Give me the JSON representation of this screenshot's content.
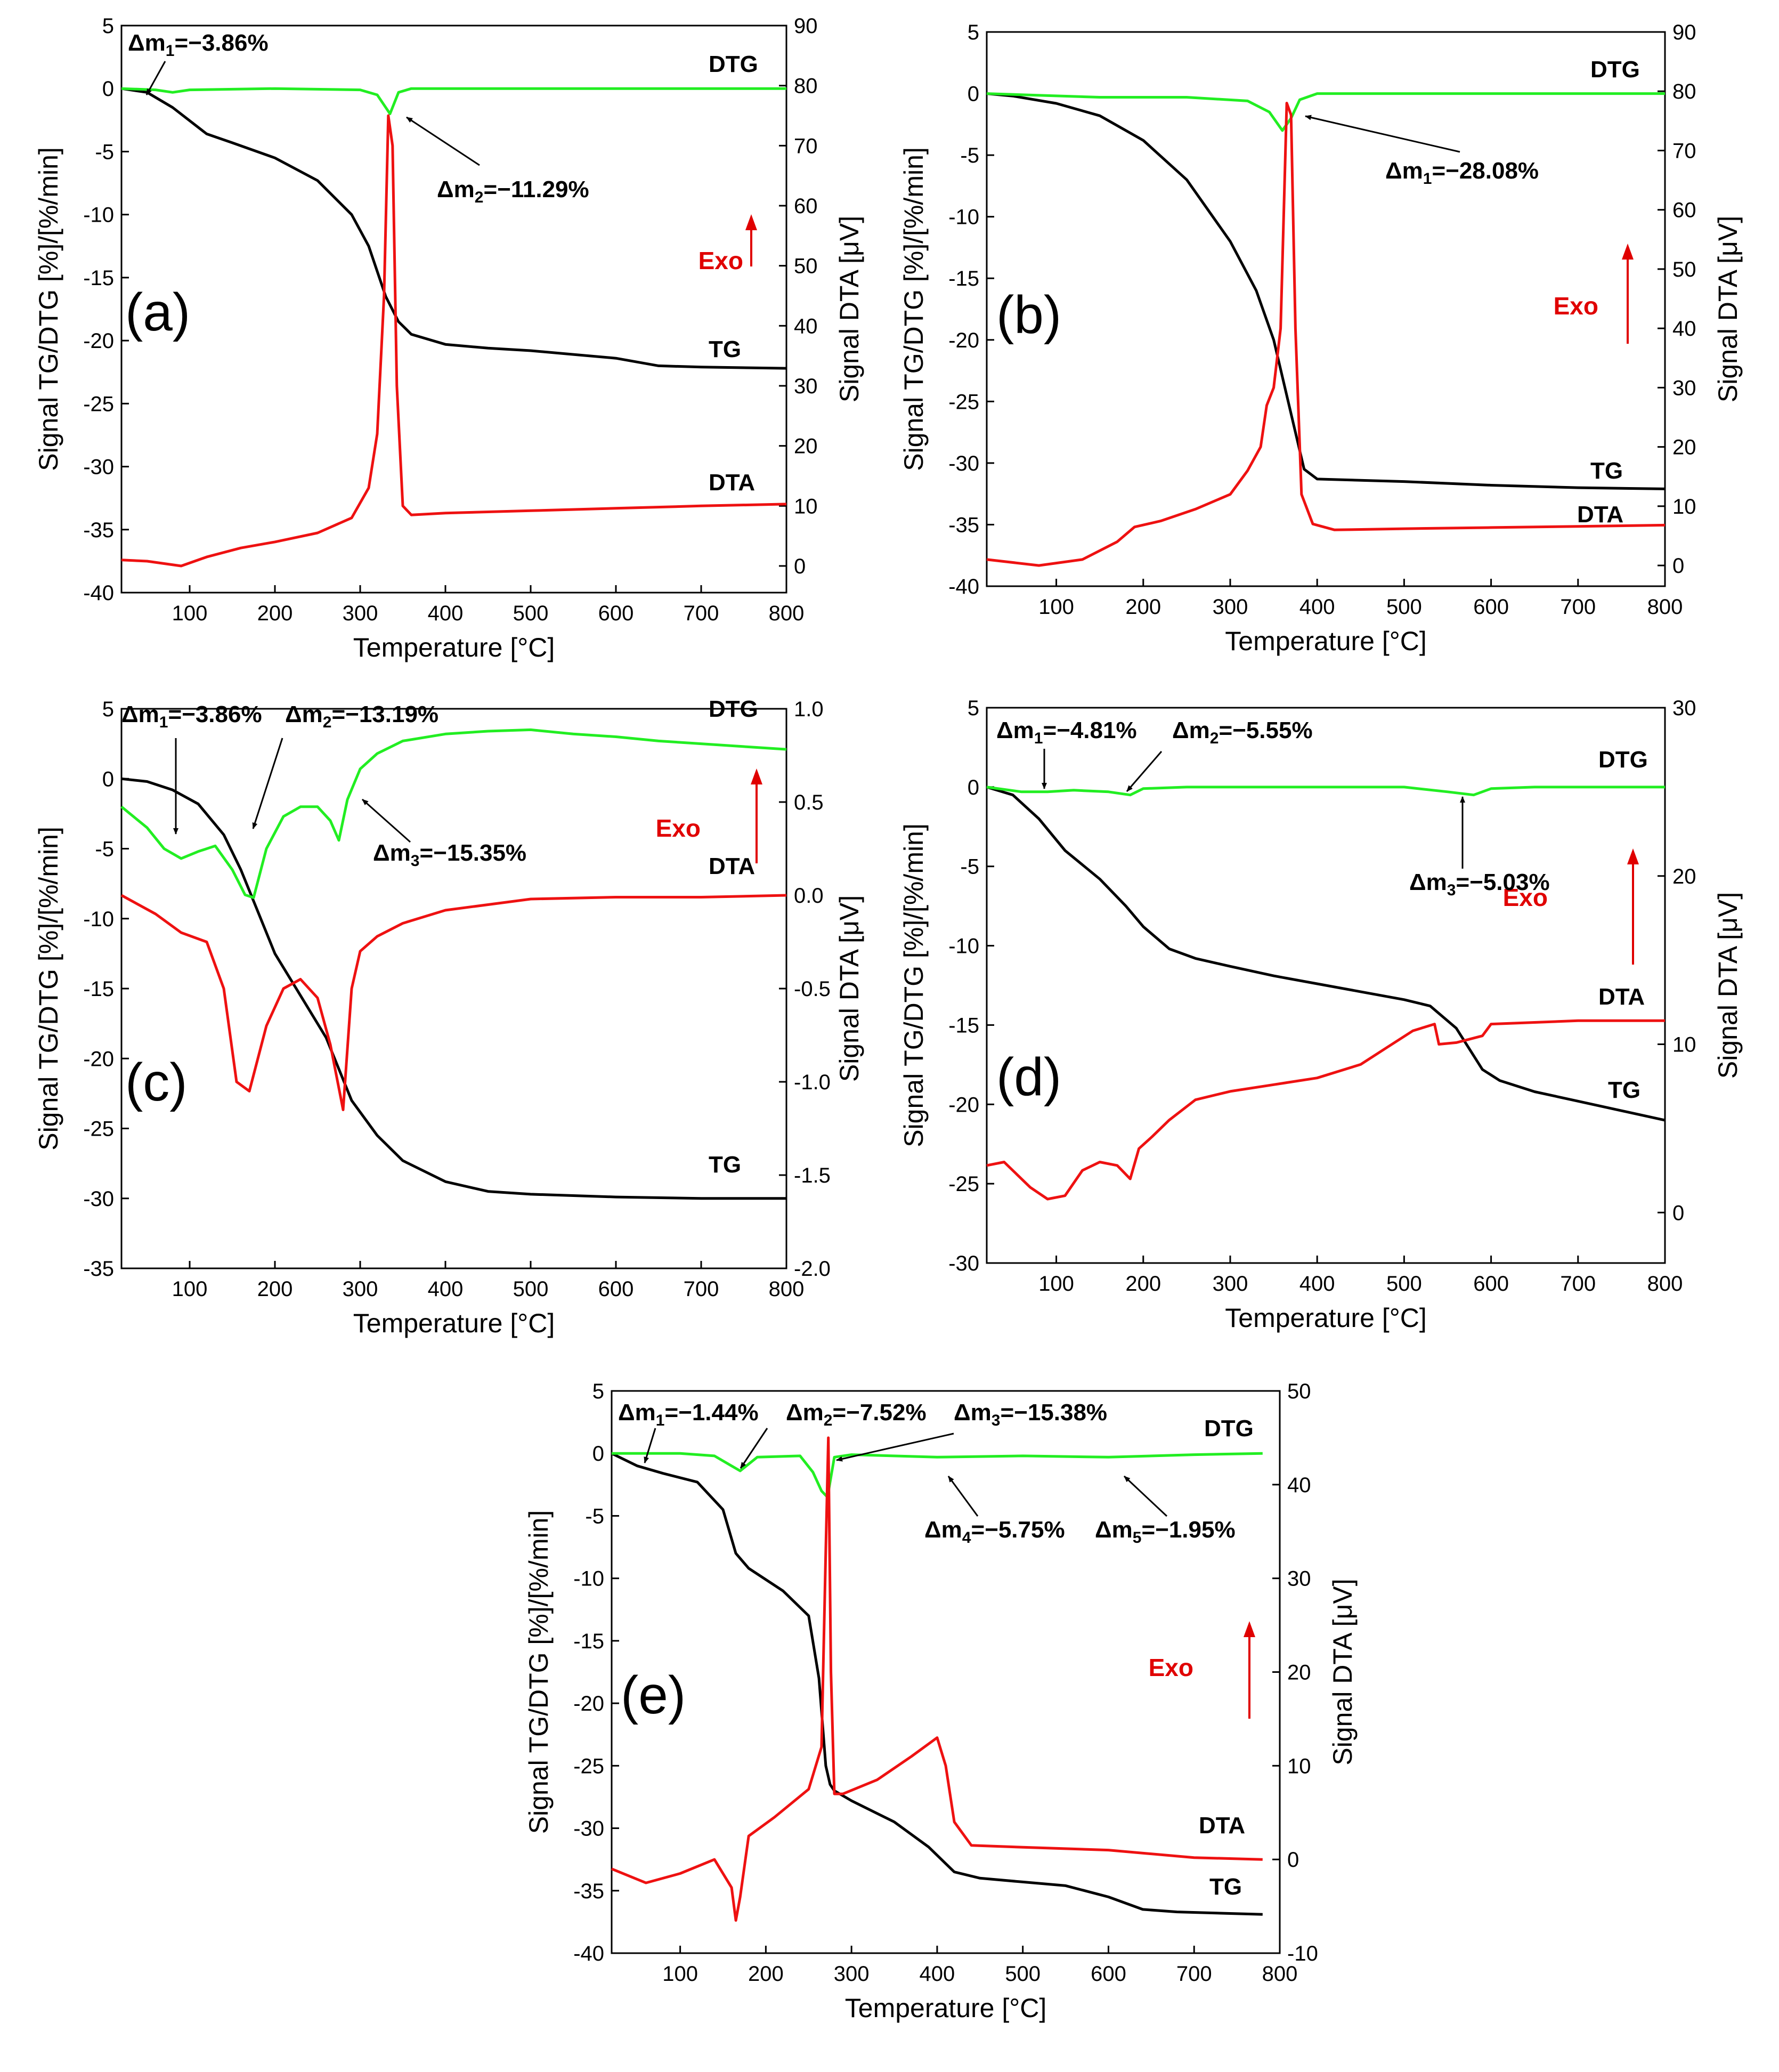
{
  "colors": {
    "tg": "#000000",
    "dtg": "#22ee22",
    "dta": "#ee1111",
    "exo": "#e00000",
    "axis": "#000000"
  },
  "chart_data": [
    {
      "type": "line",
      "panel_label": "(a)",
      "xlabel": "Temperature [°C]",
      "ylabel_left": "Signal TG/DTG [%]/[%/min]",
      "ylabel_right": "Signal DTA [μV]",
      "xlim": [
        20,
        800
      ],
      "ylim_left": [
        -40,
        5
      ],
      "ylim_right": [
        -4.44,
        90
      ],
      "xticks": [
        100,
        200,
        300,
        400,
        500,
        600,
        700,
        800
      ],
      "yticks_left": [
        5,
        0,
        -5,
        -10,
        -15,
        -20,
        -25,
        -30,
        -35,
        -40
      ],
      "yticks_right": [
        90,
        80,
        70,
        60,
        50,
        40,
        30,
        20,
        10,
        0
      ],
      "exo_label": "Exo",
      "series": [
        {
          "name": "TG",
          "label": "TG",
          "axis": "left",
          "x": [
            20,
            50,
            80,
            120,
            150,
            200,
            250,
            290,
            310,
            330,
            345,
            360,
            400,
            450,
            500,
            550,
            600,
            650,
            700,
            800
          ],
          "y": [
            0,
            -0.3,
            -1.5,
            -3.6,
            -4.3,
            -5.5,
            -7.3,
            -10,
            -12.5,
            -16.5,
            -18.5,
            -19.5,
            -20.3,
            -20.6,
            -20.8,
            -21.1,
            -21.4,
            -22.0,
            -22.1,
            -22.2
          ]
        },
        {
          "name": "DTG",
          "label": "DTG",
          "axis": "left",
          "x": [
            20,
            60,
            80,
            100,
            200,
            300,
            320,
            335,
            345,
            360,
            400,
            500,
            600,
            700,
            800
          ],
          "y": [
            0,
            -0.1,
            -0.3,
            -0.1,
            0,
            -0.1,
            -0.5,
            -2.0,
            -0.3,
            0,
            0,
            0,
            0,
            0,
            0
          ]
        },
        {
          "name": "DTA",
          "label": "DTA",
          "axis": "right",
          "x": [
            20,
            50,
            90,
            120,
            160,
            200,
            250,
            290,
            310,
            320,
            328,
            333,
            338,
            343,
            350,
            360,
            400,
            500,
            600,
            700,
            800
          ],
          "y": [
            1,
            0.8,
            0,
            1.5,
            3,
            4,
            5.5,
            8,
            13,
            22,
            45,
            75,
            70,
            30,
            10,
            8.5,
            8.8,
            9.2,
            9.6,
            10,
            10.3
          ]
        }
      ],
      "annotations": [
        {
          "main": "Δm",
          "sub": "1",
          "value": "=−3.86%",
          "x": 70,
          "y": 0
        },
        {
          "main": "Δm",
          "sub": "2",
          "value": "=−11.29%",
          "x": 350,
          "y": -1.5
        }
      ]
    },
    {
      "type": "line",
      "panel_label": "(b)",
      "xlabel": "Temperature [°C]",
      "ylabel_left": "Signal TG/DTG [%]/[%/min]",
      "ylabel_right": "Signal DTA [μV]",
      "xlim": [
        20,
        800
      ],
      "ylim_left": [
        -40,
        5
      ],
      "ylim_right": [
        -3.5,
        90
      ],
      "xticks": [
        100,
        200,
        300,
        400,
        500,
        600,
        700,
        800
      ],
      "yticks_left": [
        5,
        0,
        -5,
        -10,
        -15,
        -20,
        -25,
        -30,
        -35,
        -40
      ],
      "yticks_right": [
        90,
        80,
        70,
        60,
        50,
        40,
        30,
        20,
        10,
        0
      ],
      "exo_label": "Exo",
      "series": [
        {
          "name": "TG",
          "label": "TG",
          "axis": "left",
          "x": [
            20,
            50,
            100,
            150,
            200,
            250,
            300,
            330,
            350,
            370,
            385,
            400,
            500,
            600,
            700,
            800
          ],
          "y": [
            0,
            -0.2,
            -0.8,
            -1.8,
            -3.8,
            -7,
            -12,
            -16,
            -20,
            -26,
            -30.5,
            -31.3,
            -31.5,
            -31.8,
            -32.0,
            -32.1
          ]
        },
        {
          "name": "DTG",
          "label": "DTG",
          "axis": "left",
          "x": [
            20,
            150,
            250,
            320,
            345,
            360,
            370,
            380,
            400,
            500,
            600,
            700,
            800
          ],
          "y": [
            0,
            -0.3,
            -0.3,
            -0.6,
            -1.5,
            -3.0,
            -2.0,
            -0.5,
            0,
            0,
            0,
            0,
            0
          ]
        },
        {
          "name": "DTA",
          "label": "DTA",
          "axis": "right",
          "x": [
            20,
            80,
            130,
            170,
            190,
            220,
            260,
            300,
            320,
            335,
            342,
            350,
            358,
            365,
            370,
            375,
            382,
            395,
            420,
            500,
            600,
            700,
            800
          ],
          "y": [
            1,
            0,
            1,
            4,
            6.5,
            7.5,
            9.5,
            12,
            16,
            20,
            27,
            30,
            40,
            78,
            76,
            40,
            12,
            7,
            6,
            6.2,
            6.4,
            6.6,
            6.8
          ]
        }
      ],
      "annotations": [
        {
          "main": "Δm",
          "sub": "1",
          "value": "=−28.08%",
          "x": 380,
          "y": -2
        }
      ]
    },
    {
      "type": "line",
      "panel_label": "(c)",
      "xlabel": "Temperature [°C]",
      "ylabel_left": "Signal TG/DTG [%]/[%/min]",
      "ylabel_right": "Signal DTA [μV]",
      "xlim": [
        20,
        800
      ],
      "ylim_left": [
        -35,
        5
      ],
      "ylim_right": [
        -2.0,
        1.0
      ],
      "xticks": [
        100,
        200,
        300,
        400,
        500,
        600,
        700,
        800
      ],
      "yticks_left": [
        5,
        0,
        -5,
        -10,
        -15,
        -20,
        -25,
        -30,
        -35
      ],
      "yticks_right": [
        "1.0",
        "0.5",
        "0.0",
        "-0.5",
        "-1.0",
        "-1.5",
        "-2.0"
      ],
      "exo_label": "Exo",
      "series": [
        {
          "name": "TG",
          "label": "TG",
          "axis": "left",
          "x": [
            20,
            50,
            80,
            110,
            140,
            160,
            180,
            200,
            230,
            260,
            290,
            320,
            350,
            400,
            450,
            500,
            600,
            700,
            800
          ],
          "y": [
            0,
            -0.2,
            -0.8,
            -1.8,
            -4,
            -6.5,
            -9.5,
            -12.5,
            -15.5,
            -18.5,
            -23,
            -25.5,
            -27.3,
            -28.8,
            -29.5,
            -29.7,
            -29.9,
            -30.0,
            -30.0
          ]
        },
        {
          "name": "DTG",
          "label": "DTG",
          "axis": "left",
          "x": [
            20,
            50,
            70,
            90,
            110,
            130,
            150,
            165,
            175,
            190,
            210,
            230,
            250,
            265,
            275,
            285,
            300,
            320,
            350,
            400,
            450,
            500,
            550,
            600,
            650,
            700,
            750,
            800
          ],
          "y": [
            -2,
            -3.5,
            -5,
            -5.7,
            -5.2,
            -4.8,
            -6.5,
            -8.3,
            -8.5,
            -5,
            -2.7,
            -2,
            -2,
            -3,
            -4.4,
            -1.5,
            0.7,
            1.8,
            2.7,
            3.2,
            3.4,
            3.5,
            3.2,
            3.0,
            2.7,
            2.5,
            2.3,
            2.1
          ]
        },
        {
          "name": "DTA",
          "label": "DTA",
          "axis": "right",
          "x": [
            20,
            60,
            90,
            120,
            140,
            155,
            170,
            190,
            210,
            230,
            250,
            265,
            280,
            290,
            300,
            320,
            350,
            400,
            500,
            600,
            700,
            800
          ],
          "y": [
            0,
            -0.1,
            -0.2,
            -0.25,
            -0.5,
            -1.0,
            -1.05,
            -0.7,
            -0.5,
            -0.45,
            -0.55,
            -0.8,
            -1.15,
            -0.5,
            -0.3,
            -0.22,
            -0.15,
            -0.08,
            -0.02,
            -0.01,
            -0.01,
            0.0
          ]
        }
      ],
      "annotations": [
        {
          "main": "Δm",
          "sub": "1",
          "value": "=−3.86%",
          "x": 85,
          "y": -4
        },
        {
          "main": "Δm",
          "sub": "2",
          "value": "=−13.19%",
          "x": 170,
          "y": -3
        },
        {
          "main": "Δm",
          "sub": "3",
          "value": "=−15.35%",
          "x": 290,
          "y": -2.5
        }
      ]
    },
    {
      "type": "line",
      "panel_label": "(d)",
      "xlabel": "Temperature [°C]",
      "ylabel_left": "Signal TG/DTG [%]/[%/min]",
      "ylabel_right": "Signal DTA [μV]",
      "xlim": [
        20,
        800
      ],
      "ylim_left": [
        -30,
        5
      ],
      "ylim_right": [
        -3,
        30
      ],
      "xticks": [
        100,
        200,
        300,
        400,
        500,
        600,
        700,
        800
      ],
      "yticks_left": [
        5,
        0,
        -5,
        -10,
        -15,
        -20,
        -25,
        -30
      ],
      "yticks_right": [
        30,
        20,
        10,
        0
      ],
      "exo_label": "Exo",
      "series": [
        {
          "name": "TG",
          "label": "TG",
          "axis": "left",
          "x": [
            20,
            50,
            80,
            110,
            150,
            180,
            200,
            230,
            260,
            300,
            350,
            400,
            450,
            500,
            530,
            560,
            590,
            610,
            650,
            700,
            800
          ],
          "y": [
            0,
            -0.5,
            -2,
            -4,
            -5.8,
            -7.5,
            -8.8,
            -10.2,
            -10.8,
            -11.3,
            -11.9,
            -12.4,
            -12.9,
            -13.4,
            -13.8,
            -15.2,
            -17.8,
            -18.5,
            -19.2,
            -19.8,
            -21.0
          ]
        },
        {
          "name": "DTG",
          "label": "DTG",
          "axis": "left",
          "x": [
            20,
            60,
            90,
            120,
            160,
            185,
            200,
            250,
            400,
            500,
            550,
            580,
            600,
            650,
            700,
            800
          ],
          "y": [
            0,
            -0.3,
            -0.3,
            -0.2,
            -0.3,
            -0.5,
            -0.1,
            0,
            0,
            0,
            -0.3,
            -0.5,
            -0.1,
            0,
            0,
            0
          ]
        },
        {
          "name": "DTA",
          "label": "DTA",
          "axis": "right",
          "x": [
            20,
            40,
            70,
            90,
            110,
            130,
            150,
            170,
            185,
            195,
            210,
            230,
            260,
            300,
            350,
            400,
            450,
            480,
            510,
            535,
            540,
            560,
            590,
            600,
            650,
            700,
            800
          ],
          "y": [
            2.8,
            3,
            1.5,
            0.8,
            1,
            2.5,
            3,
            2.8,
            2,
            3.8,
            4.5,
            5.5,
            6.7,
            7.2,
            7.6,
            8.0,
            8.8,
            9.8,
            10.8,
            11.2,
            10.0,
            10.1,
            10.5,
            11.2,
            11.3,
            11.4,
            11.4
          ]
        }
      ],
      "annotations": [
        {
          "main": "Δm",
          "sub": "1",
          "value": "=−4.81%",
          "x": 90,
          "y": -0.5
        },
        {
          "main": "Δm",
          "sub": "2",
          "value": "=−5.55%",
          "x": 180,
          "y": -0.3
        },
        {
          "main": "Δm",
          "sub": "3",
          "value": "=−5.03%",
          "x": 580,
          "y": -0.5
        }
      ]
    },
    {
      "type": "line",
      "panel_label": "(e)",
      "xlabel": "Temperature  [°C]",
      "ylabel_left": "Signal TG/DTG [%]/[%/min]",
      "ylabel_right": "Signal DTA [μV]",
      "xlim": [
        20,
        800
      ],
      "ylim_left": [
        -40,
        5
      ],
      "ylim_right": [
        -10,
        50
      ],
      "xticks": [
        100,
        200,
        300,
        400,
        500,
        600,
        700,
        800
      ],
      "yticks_left": [
        5,
        0,
        -5,
        -10,
        -15,
        -20,
        -25,
        -30,
        -35,
        -40
      ],
      "yticks_right": [
        50,
        40,
        30,
        20,
        10,
        0,
        -10
      ],
      "exo_label": "Exo",
      "series": [
        {
          "name": "TG",
          "label": "TG",
          "axis": "left",
          "x": [
            20,
            50,
            80,
            120,
            150,
            165,
            180,
            220,
            250,
            262,
            270,
            275,
            280,
            300,
            350,
            390,
            420,
            450,
            500,
            550,
            600,
            640,
            680,
            780
          ],
          "y": [
            0,
            -1,
            -1.6,
            -2.3,
            -4.5,
            -8,
            -9.2,
            -11,
            -13,
            -18,
            -25,
            -26.5,
            -27,
            -27.8,
            -29.5,
            -31.5,
            -33.5,
            -34,
            -34.3,
            -34.6,
            -35.5,
            -36.5,
            -36.7,
            -36.9
          ]
        },
        {
          "name": "DTG",
          "label": "DTG",
          "axis": "left",
          "x": [
            20,
            100,
            140,
            160,
            170,
            190,
            240,
            255,
            265,
            272,
            280,
            300,
            400,
            500,
            600,
            700,
            780
          ],
          "y": [
            0,
            0,
            -0.2,
            -1.0,
            -1.4,
            -0.3,
            -0.2,
            -1.5,
            -3.0,
            -3.5,
            -0.3,
            -0.1,
            -0.3,
            -0.2,
            -0.3,
            -0.1,
            0
          ]
        },
        {
          "name": "DTA",
          "label": "DTA",
          "axis": "right",
          "x": [
            20,
            60,
            100,
            140,
            160,
            165,
            170,
            180,
            210,
            250,
            265,
            270,
            273,
            276,
            280,
            290,
            330,
            370,
            400,
            410,
            420,
            440,
            500,
            600,
            700,
            780
          ],
          "y": [
            -1,
            -2.5,
            -1.5,
            0,
            -3,
            -6.5,
            -4,
            2.5,
            4.5,
            7.5,
            12,
            33,
            45,
            20,
            7,
            7,
            8.5,
            11,
            13,
            10,
            4,
            1.5,
            1.3,
            1.0,
            0.2,
            0
          ]
        }
      ],
      "annotations": [
        {
          "main": "Δm",
          "sub": "1",
          "value": "=−1.44%",
          "x": 60,
          "y": -0.5
        },
        {
          "main": "Δm",
          "sub": "2",
          "value": "=−7.52%",
          "x": 170,
          "y": -1.0
        },
        {
          "main": "Δm",
          "sub": "3",
          "value": "=−15.38%",
          "x": 275,
          "y": -0.5
        },
        {
          "main": "Δm",
          "sub": "4",
          "value": "=−5.75%",
          "x": 410,
          "y": -0.5
        },
        {
          "main": "Δm",
          "sub": "5",
          "value": "=−1.95%",
          "x": 600,
          "y": -0.4
        }
      ]
    }
  ]
}
